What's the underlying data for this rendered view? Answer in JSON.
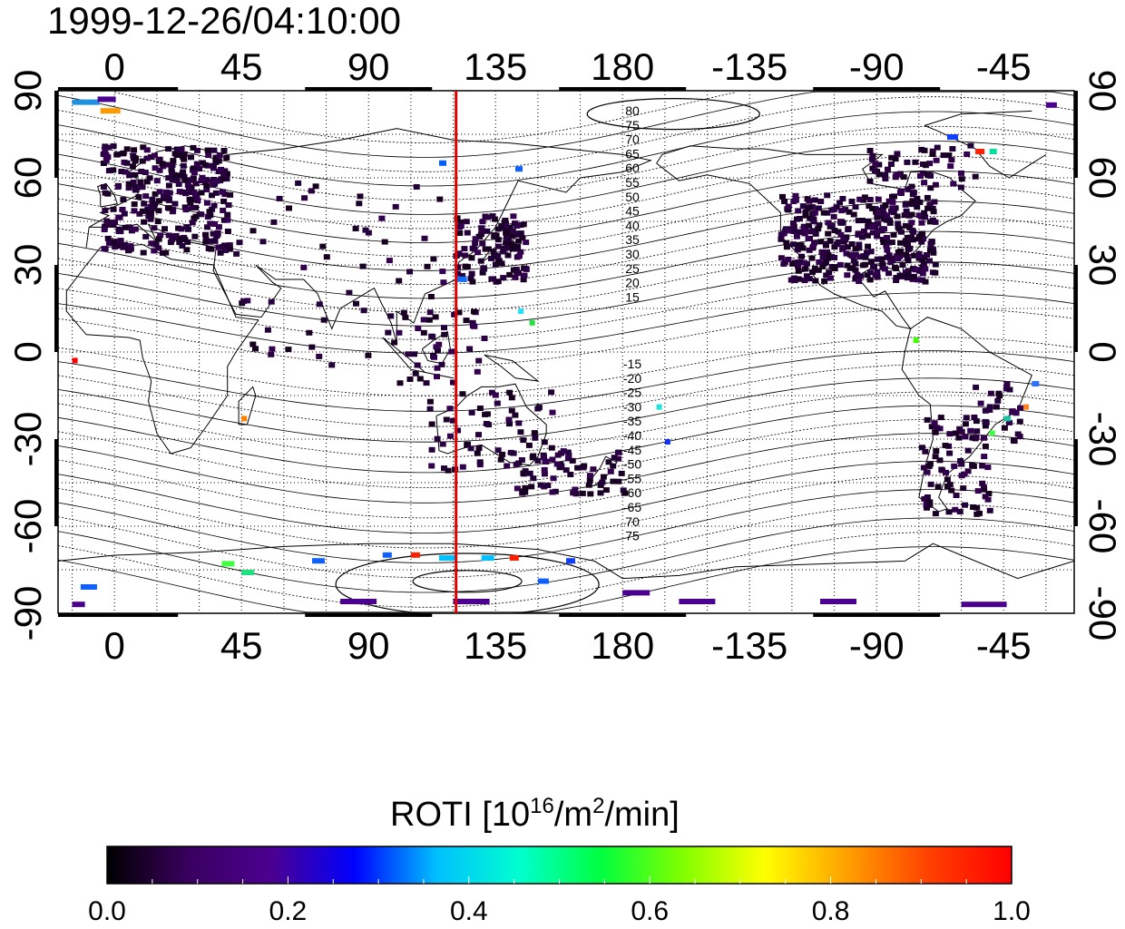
{
  "title": "1999-12-26/04:10:00",
  "map": {
    "lon_ticks": [
      "0",
      "45",
      "90",
      "135",
      "180",
      "-135",
      "-90",
      "-45"
    ],
    "lat_ticks": [
      "90",
      "60",
      "30",
      "0",
      "-30",
      "-60",
      "-90"
    ],
    "meridian_line_lon": 121,
    "meridian_line_color": "#e00000",
    "contour_labels_north": [
      "80",
      "75",
      "70",
      "65",
      "60",
      "55",
      "50",
      "45",
      "40",
      "35",
      "30",
      "25",
      "20",
      "15"
    ],
    "contour_labels_south": [
      "-15",
      "-20",
      "-25",
      "-30",
      "-35",
      "-40",
      "-45",
      "-50",
      "-55",
      "-60",
      "-65",
      "70",
      "75"
    ]
  },
  "colorbar": {
    "label_main": "ROTI  [10",
    "label_sup1": "16",
    "label_mid": "/m",
    "label_sup2": "2",
    "label_end": "/min]",
    "ticks": [
      "0.0",
      "0.2",
      "0.4",
      "0.6",
      "0.8",
      "1.0"
    ],
    "min": 0.0,
    "max": 1.0,
    "colors": [
      "#000000",
      "#3a0060",
      "#4b0090",
      "#0000ff",
      "#00bfff",
      "#00ffd0",
      "#00ff40",
      "#80ff00",
      "#ffff00",
      "#ffa000",
      "#ff4000",
      "#ff0000"
    ]
  }
}
